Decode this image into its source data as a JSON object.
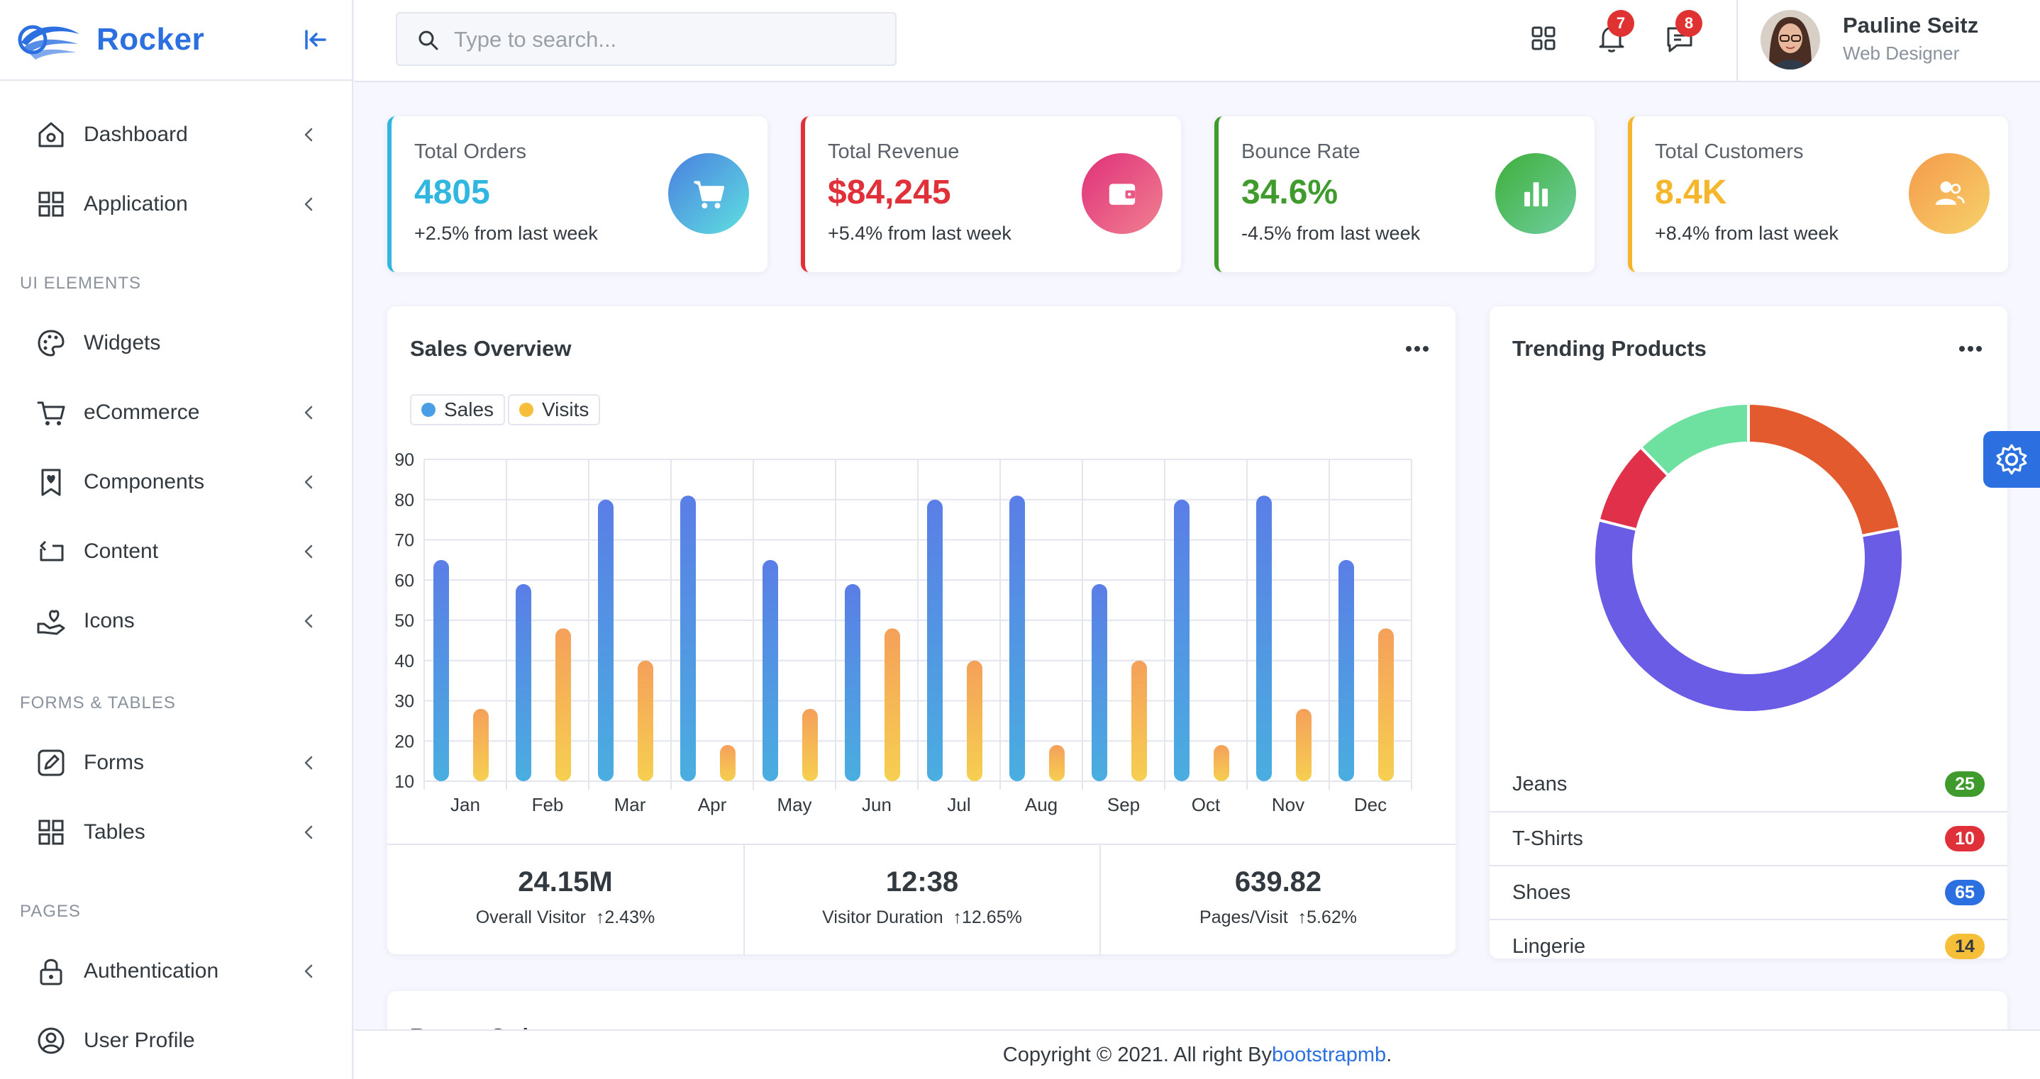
{
  "brand": {
    "name": "Rocker"
  },
  "sidebar": {
    "items": [
      {
        "label": "Dashboard",
        "icon": "home-icon"
      },
      {
        "label": "Application",
        "icon": "grid-icon"
      },
      {
        "label": "Widgets",
        "icon": "palette-icon"
      },
      {
        "label": "eCommerce",
        "icon": "cart-icon"
      },
      {
        "label": "Components",
        "icon": "bookmark-heart-icon"
      },
      {
        "label": "Content",
        "icon": "repeat-icon"
      },
      {
        "label": "Icons",
        "icon": "donate-icon"
      },
      {
        "label": "Forms",
        "icon": "edit-icon"
      },
      {
        "label": "Tables",
        "icon": "grid-icon"
      },
      {
        "label": "Authentication",
        "icon": "lock-icon"
      },
      {
        "label": "User Profile",
        "icon": "user-circle-icon"
      }
    ],
    "sections": [
      "UI ELEMENTS",
      "FORMS & TABLES",
      "PAGES"
    ]
  },
  "header": {
    "search_placeholder": "Type to search...",
    "notifications_count": "7",
    "messages_count": "8",
    "user_name": "Pauline Seitz",
    "user_role": "Web Designer"
  },
  "stats": [
    {
      "title": "Total Orders",
      "value": "4805",
      "change": "+2.5% from last week",
      "color": "#30b7e0",
      "icon": "cart-icon"
    },
    {
      "title": "Total Revenue",
      "value": "$84,245",
      "change": "+5.4% from last week",
      "color": "#e0303a",
      "icon": "wallet-icon"
    },
    {
      "title": "Bounce Rate",
      "value": "34.6%",
      "change": "-4.5% from last week",
      "color": "#3f9b2c",
      "icon": "bar-chart-icon"
    },
    {
      "title": "Total Customers",
      "value": "8.4K",
      "change": "+8.4% from last week",
      "color": "#f6b62c",
      "icon": "users-icon"
    }
  ],
  "sales_overview": {
    "title": "Sales Overview",
    "summary": [
      {
        "value": "24.15M",
        "label": "Overall Visitor",
        "change": "2.43%"
      },
      {
        "value": "12:38",
        "label": "Visitor Duration",
        "change": "12.65%"
      },
      {
        "value": "639.82",
        "label": "Pages/Visit",
        "change": "5.62%"
      }
    ]
  },
  "chart_data": {
    "type": "bar",
    "categories": [
      "Jan",
      "Feb",
      "Mar",
      "Apr",
      "May",
      "Jun",
      "Jul",
      "Aug",
      "Sep",
      "Oct",
      "Nov",
      "Dec"
    ],
    "series": [
      {
        "name": "Sales",
        "values": [
          65,
          59,
          80,
          81,
          65,
          59,
          80,
          81,
          59,
          80,
          81,
          65
        ],
        "color": "#4a8ee6"
      },
      {
        "name": "Visits",
        "values": [
          28,
          48,
          40,
          19,
          28,
          48,
          40,
          19,
          40,
          19,
          28,
          48
        ],
        "color": "#f6bf4a"
      }
    ],
    "ylim": [
      10,
      90
    ],
    "yticks": [
      10,
      20,
      30,
      40,
      50,
      60,
      70,
      80,
      90
    ],
    "grid": true,
    "legend": "top-left"
  },
  "trending": {
    "title": "Trending Products",
    "donut": [
      {
        "name": "Jeans",
        "value": 25,
        "color": "#e45a2f"
      },
      {
        "name": "Shoes",
        "value": 65,
        "color": "#6b5ce6"
      },
      {
        "name": "T-Shirts",
        "value": 10,
        "color": "#e0304a"
      },
      {
        "name": "Lingerie",
        "value": 14,
        "color": "#6ee0a0"
      }
    ],
    "products": [
      {
        "name": "Jeans",
        "count": "25",
        "color": "#3f9b2c"
      },
      {
        "name": "T-Shirts",
        "count": "10",
        "color": "#e0303a"
      },
      {
        "name": "Shoes",
        "count": "65",
        "color": "#2b6fe0"
      },
      {
        "name": "Lingerie",
        "count": "14",
        "color": "#f6bf3a"
      }
    ]
  },
  "recent_orders": {
    "title": "Recent Orders"
  },
  "footer": {
    "text": "Copyright © 2021. All right By ",
    "link": "bootstrapmb",
    "suffix": "."
  }
}
